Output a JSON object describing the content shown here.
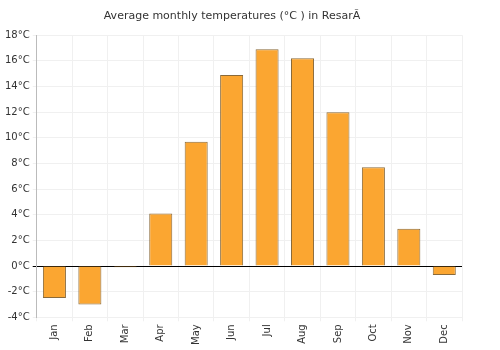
{
  "chart_data": {
    "type": "bar",
    "title": "Average monthly temperatures (°C ) in ResarÃ",
    "categories": [
      "Jan",
      "Feb",
      "Mar",
      "Apr",
      "May",
      "Jun",
      "Jul",
      "Aug",
      "Sep",
      "Oct",
      "Nov",
      "Dec"
    ],
    "values": [
      -2.5,
      -3.0,
      -0.1,
      4.1,
      9.7,
      14.9,
      16.9,
      16.2,
      12.0,
      7.7,
      2.9,
      -0.7
    ],
    "color": "#fba631",
    "ylim": [
      -4,
      18
    ],
    "yticks": [
      {
        "value": -4,
        "label": "-4°C"
      },
      {
        "value": -2,
        "label": "-2°C"
      },
      {
        "value": 0,
        "label": "0°C"
      },
      {
        "value": 2,
        "label": "2°C"
      },
      {
        "value": 4,
        "label": "4°C"
      },
      {
        "value": 6,
        "label": "6°C"
      },
      {
        "value": 8,
        "label": "8°C"
      },
      {
        "value": 10,
        "label": "10°C"
      },
      {
        "value": 12,
        "label": "12°C"
      },
      {
        "value": 14,
        "label": "14°C"
      },
      {
        "value": 16,
        "label": "16°C"
      },
      {
        "value": 18,
        "label": "18°C"
      }
    ],
    "grid": true
  }
}
